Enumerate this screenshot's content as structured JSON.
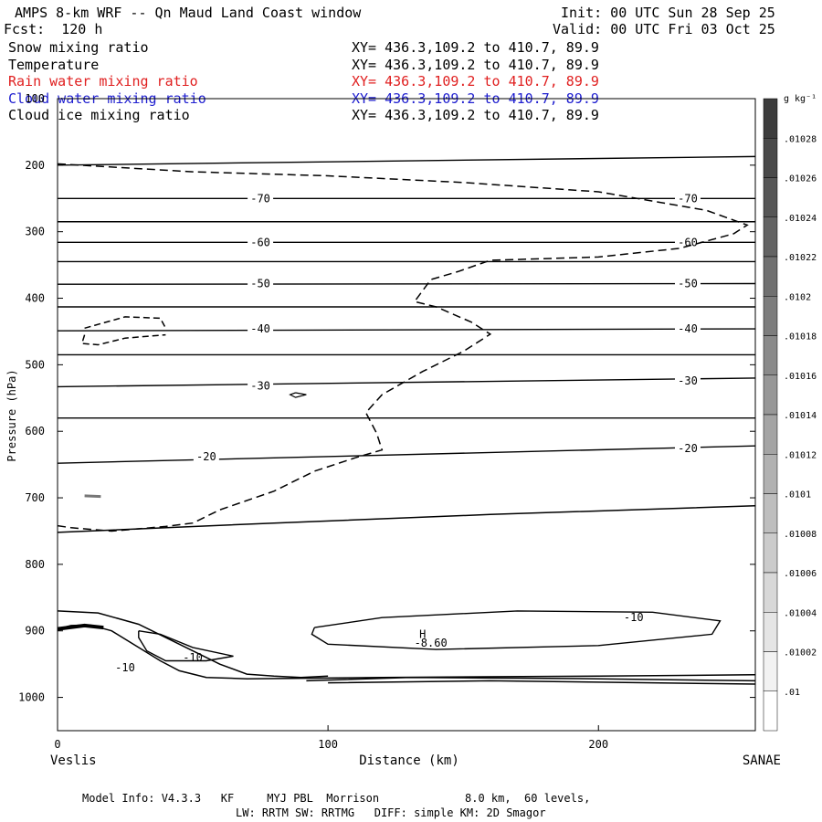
{
  "header": {
    "title": "AMPS 8-km WRF -- Qn Maud Land Coast window",
    "init": "Init: 00 UTC Sun 28 Sep 25",
    "fcst": "Fcst:  120 h",
    "valid": "Valid: 00 UTC Fri 03 Oct 25"
  },
  "legend": [
    {
      "name": "Snow mixing ratio",
      "xy": "XY= 436.3,109.2 to 410.7, 89.9",
      "color": "#000000"
    },
    {
      "name": "Temperature",
      "xy": "XY= 436.3,109.2 to 410.7, 89.9",
      "color": "#000000"
    },
    {
      "name": "Rain water mixing ratio",
      "xy": "XY= 436.3,109.2 to 410.7, 89.9",
      "color": "#e02020"
    },
    {
      "name": "Cloud water mixing ratio",
      "xy": "XY= 436.3,109.2 to 410.7, 89.9",
      "color": "#2020d0"
    },
    {
      "name": "Cloud ice mixing ratio",
      "xy": "XY= 436.3,109.2 to 410.7, 89.9",
      "color": "#000000"
    }
  ],
  "chart_data": {
    "type": "line",
    "subtype": "vertical cross-section contour",
    "xlabel": "Distance (km)",
    "ylabel": "Pressure (hPa)",
    "xlim": [
      0,
      258
    ],
    "ylim": [
      1050,
      100
    ],
    "x_ticks": [
      0,
      100,
      200
    ],
    "y_ticks": [
      100,
      200,
      300,
      400,
      500,
      600,
      700,
      800,
      900,
      1000
    ],
    "left_endpoint": "Veslis",
    "right_endpoint": "SANAE",
    "temperature_contours": [
      {
        "label": "-70",
        "label_positions": [
          [
            75,
            250
          ],
          [
            233,
            250
          ]
        ],
        "x": [
          0,
          258
        ],
        "y": [
          250,
          250
        ]
      },
      {
        "label": "-60",
        "label_positions": [
          [
            75,
            316
          ],
          [
            233,
            316
          ]
        ],
        "x": [
          0,
          258
        ],
        "y": [
          316,
          316
        ]
      },
      {
        "label": "-50",
        "label_positions": [
          [
            75,
            378
          ],
          [
            233,
            378
          ]
        ],
        "x": [
          0,
          258
        ],
        "y": [
          379,
          378
        ]
      },
      {
        "label": "-40",
        "label_positions": [
          [
            75,
            446
          ],
          [
            233,
            446
          ]
        ],
        "x": [
          0,
          258
        ],
        "y": [
          449,
          446
        ]
      },
      {
        "label": "-30",
        "label_positions": [
          [
            75,
            532
          ],
          [
            233,
            524
          ]
        ],
        "x": [
          0,
          258
        ],
        "y": [
          533,
          520
        ]
      },
      {
        "label": "-20",
        "label_positions": [
          [
            55,
            638
          ],
          [
            233,
            626
          ]
        ],
        "x": [
          0,
          258
        ],
        "y": [
          648,
          622
        ]
      },
      {
        "label": "-10",
        "label_positions": [
          [
            25,
            955
          ],
          [
            50,
            940
          ],
          [
            213,
            880
          ]
        ]
      },
      {
        "label": "H",
        "label_positions": [
          [
            135,
            905
          ]
        ]
      },
      {
        "label": "-8.60",
        "label_positions": [
          [
            138,
            918
          ]
        ]
      }
    ],
    "unlabeled_isotherms_hPa": [
      200,
      187,
      285,
      345,
      413,
      485,
      580
    ],
    "snow_mixing_ratio_contour": {
      "style": "dashed",
      "x": [
        0,
        50,
        100,
        150,
        200,
        240,
        255,
        250,
        230,
        200,
        160,
        148,
        138,
        132,
        140,
        153,
        160,
        150,
        135,
        120,
        114,
        118,
        120,
        110,
        95,
        80,
        60,
        50,
        40,
        20,
        5,
        0
      ],
      "y": [
        198,
        210,
        216,
        226,
        240,
        268,
        290,
        303,
        325,
        338,
        343,
        360,
        372,
        405,
        413,
        436,
        454,
        480,
        510,
        545,
        572,
        603,
        628,
        640,
        660,
        690,
        718,
        738,
        743,
        750,
        745,
        742
      ]
    },
    "colorbar": {
      "unit": "g kg⁻¹",
      "labels": [
        ".01028",
        ".01026",
        ".01024",
        ".01022",
        ".0102",
        ".01018",
        ".01016",
        ".01014",
        ".01012",
        ".0101",
        ".01008",
        ".01006",
        ".01004",
        ".01002",
        ".01"
      ]
    }
  },
  "footer": {
    "line1": "Model Info: V4.3.3   KF     MYJ PBL  Morrison             8.0 km,  60 levels,",
    "line2": "LW: RRTM SW: RRTMG   DIFF: simple KM: 2D Smagor"
  }
}
